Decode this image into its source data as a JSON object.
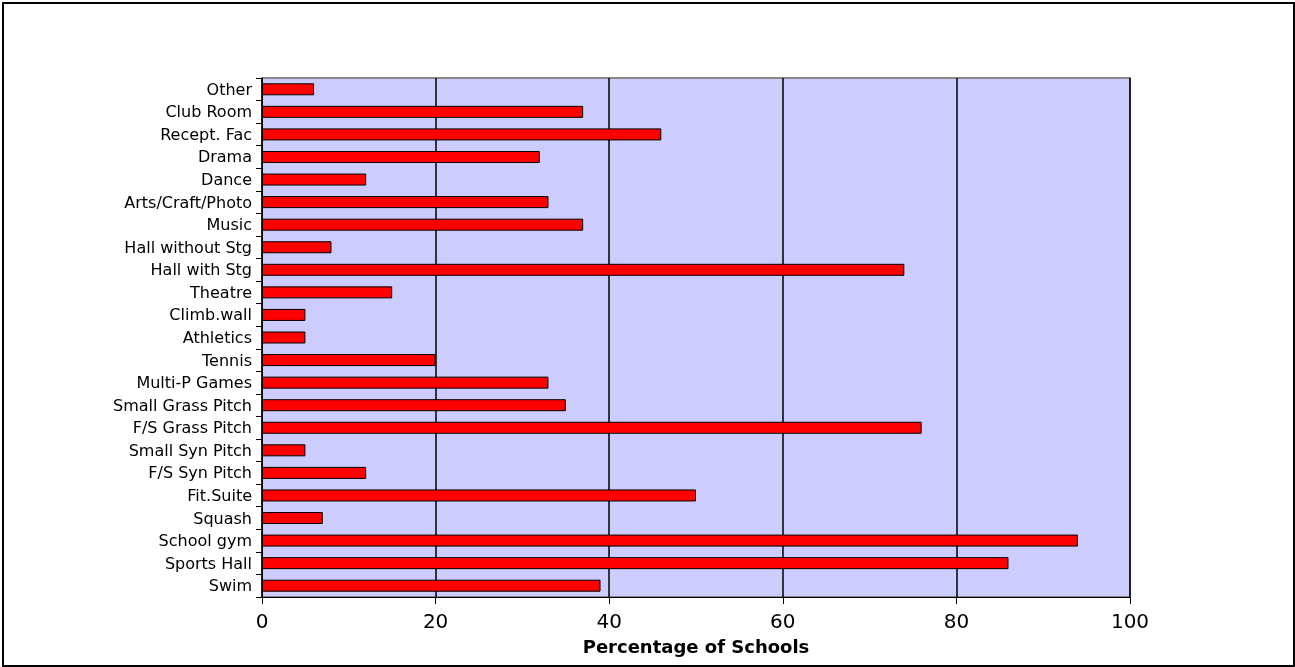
{
  "chart_data": {
    "type": "bar",
    "orientation": "horizontal",
    "xlabel": "Percentage of Schools",
    "categories": [
      "Other",
      "Club Room",
      "Recept. Fac",
      "Drama",
      "Dance",
      "Arts/Craft/Photo",
      "Music",
      "Hall without Stg",
      "Hall with Stg",
      "Theatre",
      "Climb.wall",
      "Athletics",
      "Tennis",
      "Multi-P Games",
      "Small Grass Pitch",
      "F/S Grass Pitch",
      "Small Syn Pitch",
      "F/S Syn Pitch",
      "Fit.Suite",
      "Squash",
      "School gym",
      "Sports Hall",
      "Swim"
    ],
    "values": [
      6,
      37,
      46,
      32,
      12,
      33,
      37,
      8,
      74,
      15,
      5,
      5,
      20,
      33,
      35,
      76,
      5,
      12,
      50,
      7,
      94,
      86,
      39
    ],
    "color": "#ff0000",
    "xlim": [
      0,
      100
    ],
    "xticks": [
      0,
      20,
      40,
      60,
      80,
      100
    ],
    "grid": "x"
  }
}
